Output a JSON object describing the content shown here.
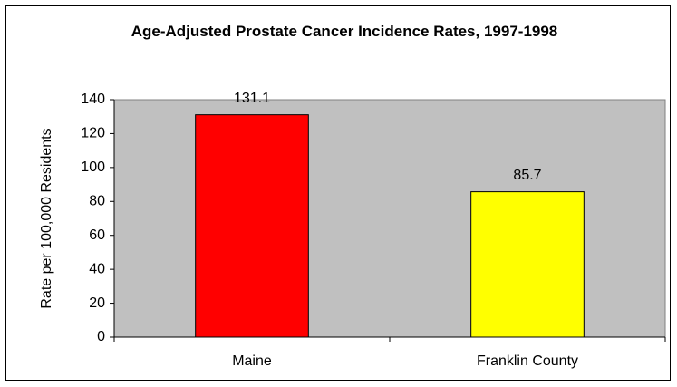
{
  "chart_data": {
    "type": "bar",
    "title": "Age-Adjusted Prostate Cancer Incidence Rates, 1997-1998",
    "y_label": "Rate per 100,000 Residents",
    "categories": [
      "Maine",
      "Franklin County"
    ],
    "values": [
      131.1,
      85.7
    ],
    "colors": [
      "#ff0000",
      "#ffff00"
    ],
    "ylim": [
      0,
      140
    ],
    "yticks": [
      0,
      20,
      40,
      60,
      80,
      100,
      120,
      140
    ],
    "grid": false
  }
}
